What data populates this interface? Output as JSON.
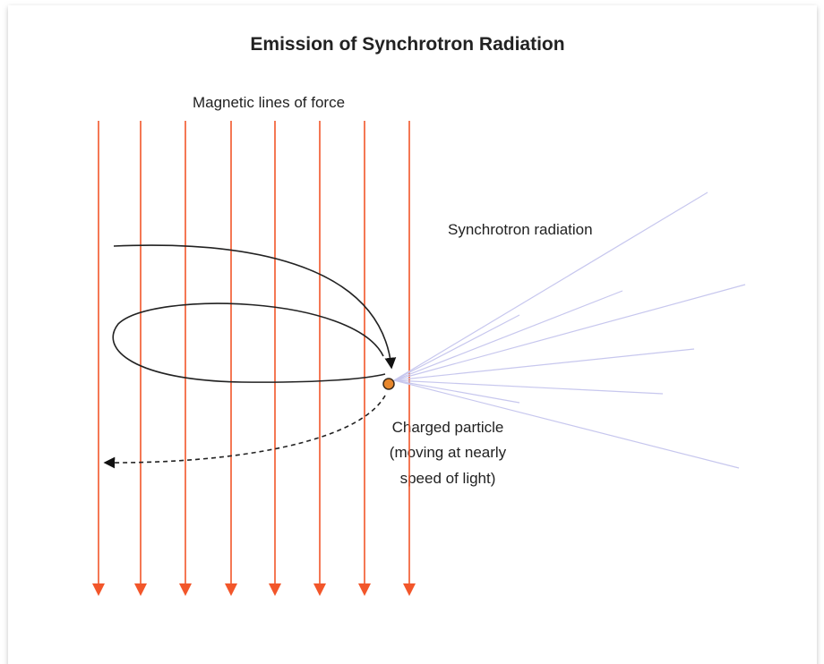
{
  "title": "Emission of Synchrotron Radiation",
  "labels": {
    "field": "Magnetic lines of force",
    "radiation": "Synchrotron radiation",
    "particle": [
      "Charged particle",
      "(moving at nearly",
      "speed of light)"
    ]
  }
}
